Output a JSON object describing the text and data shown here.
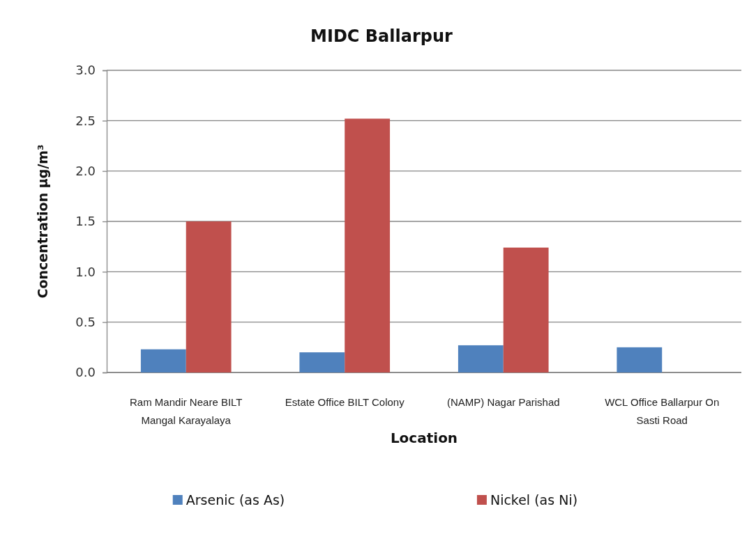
{
  "chart_data": {
    "type": "bar",
    "title": "MIDC Ballarpur",
    "xlabel": "Location",
    "ylabel": "Concentration µg/m³",
    "categories": [
      "Ram Mandir Neare BILT Mangal Karayalaya",
      "Estate Office BILT Colony",
      "(NAMP) Nagar Parishad",
      "WCL Office Ballarpur On Sasti Road"
    ],
    "series": [
      {
        "name": "Arsenic (as As)",
        "color": "#4f81bd",
        "values": [
          0.23,
          0.2,
          0.27,
          0.25
        ]
      },
      {
        "name": "Nickel (as Ni)",
        "color": "#c0504d",
        "values": [
          1.5,
          2.52,
          1.24,
          null
        ]
      }
    ],
    "ylim": [
      0,
      3
    ],
    "yticks": [
      {
        "value": 0,
        "label": "0.0"
      },
      {
        "value": 0.5,
        "label": "0.5"
      },
      {
        "value": 1,
        "label": "1.0"
      },
      {
        "value": 1.5,
        "label": "1.5"
      },
      {
        "value": 2,
        "label": "2.0"
      },
      {
        "value": 2.5,
        "label": "2.5"
      },
      {
        "value": 3,
        "label": "3.0"
      }
    ],
    "grid": "y",
    "legend": "bottom"
  }
}
